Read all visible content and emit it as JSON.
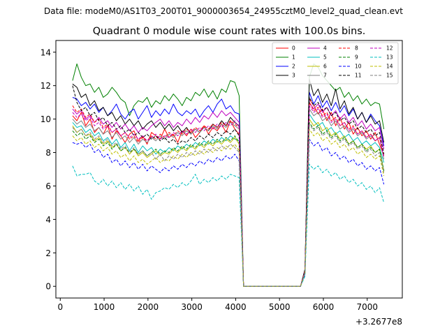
{
  "chart_data": {
    "type": "line",
    "suptitle": "Data file: modeM0/AS1T03_200T01_9000003654_24955cztM0_level2_quad_clean.evt",
    "title": "Quadrant 0 module wise count rates with 100.0s bins.",
    "xlabel": "",
    "ylabel": "",
    "x_offset_text": "+3.2677e8",
    "xlim": [
      -100,
      7800
    ],
    "ylim": [
      -0.7,
      14.7
    ],
    "x_ticks": [
      0,
      1000,
      2000,
      3000,
      4000,
      5000,
      6000,
      7000
    ],
    "x_tick_labels": [
      "0",
      "1000",
      "2000",
      "3000",
      "4000",
      "5000",
      "6000",
      "7000"
    ],
    "y_ticks": [
      0,
      2,
      4,
      6,
      8,
      10,
      12,
      14
    ],
    "y_tick_labels": [
      "0",
      "2",
      "4",
      "6",
      "8",
      "10",
      "12",
      "14"
    ],
    "legend_position": "upper right",
    "x_start": 280,
    "x_step": 100,
    "gap_zero_points": 14,
    "series": [
      {
        "name": "0",
        "color": "#ff0000",
        "dash": "solid",
        "pre": [
          10.2,
          9.9,
          10.4,
          9.6,
          10.0,
          9.2,
          9.5,
          9.1,
          9.6,
          8.8,
          9.3,
          9.0,
          8.6,
          9.1,
          9.3,
          8.7,
          9.0,
          8.5,
          9.2,
          9.0,
          8.8,
          9.4,
          8.9,
          9.1,
          8.6,
          9.3,
          9.0,
          9.4,
          8.9,
          9.2,
          9.6,
          9.1,
          9.5,
          9.3,
          9.7,
          9.2,
          9.9,
          9.4,
          9.1
        ],
        "post": [
          1.0,
          11.2,
          10.8,
          10.3,
          10.6,
          9.9,
          10.4,
          9.6,
          10.1,
          9.4,
          9.8,
          9.1,
          9.5,
          9.0,
          9.3,
          8.8,
          9.2,
          8.5,
          7.8
        ]
      },
      {
        "name": "1",
        "color": "#008000",
        "dash": "solid",
        "pre": [
          12.3,
          13.3,
          12.5,
          12.0,
          12.1,
          11.6,
          11.9,
          11.3,
          11.5,
          11.9,
          11.6,
          11.2,
          11.0,
          10.2,
          10.8,
          11.1,
          11.0,
          11.3,
          10.7,
          11.1,
          10.9,
          11.4,
          11.1,
          11.5,
          11.2,
          10.8,
          11.3,
          11.1,
          11.6,
          11.4,
          11.8,
          11.3,
          11.7,
          11.2,
          11.8,
          11.6,
          12.3,
          12.2,
          11.4
        ],
        "post": [
          1.0,
          12.5,
          13.3,
          13.1,
          12.6,
          12.3,
          12.0,
          11.7,
          11.9,
          11.3,
          11.6,
          11.1,
          11.4,
          10.9,
          11.2,
          10.8,
          11.0,
          10.9,
          9.4
        ]
      },
      {
        "name": "2",
        "color": "#0000ff",
        "dash": "solid",
        "pre": [
          11.3,
          11.2,
          10.8,
          11.0,
          10.6,
          10.9,
          10.4,
          10.7,
          10.2,
          10.5,
          10.9,
          10.3,
          10.0,
          10.4,
          10.6,
          10.0,
          10.4,
          10.8,
          10.1,
          10.5,
          10.2,
          10.6,
          10.3,
          10.9,
          10.4,
          10.2,
          10.5,
          10.3,
          10.6,
          10.1,
          10.5,
          10.8,
          10.4,
          10.9,
          11.2,
          10.6,
          10.8,
          10.4,
          10.3
        ],
        "post": [
          0.9,
          11.6,
          10.9,
          11.4,
          10.7,
          11.1,
          10.5,
          11.0,
          10.4,
          10.8,
          10.2,
          10.6,
          10.0,
          10.4,
          9.8,
          10.3,
          9.9,
          9.6,
          8.4
        ]
      },
      {
        "name": "3",
        "color": "#000000",
        "dash": "solid",
        "pre": [
          12.1,
          11.9,
          11.3,
          11.5,
          10.8,
          11.1,
          10.5,
          10.7,
          10.2,
          10.4,
          9.9,
          10.2,
          9.7,
          10.0,
          9.6,
          9.9,
          9.4,
          9.7,
          9.9,
          9.5,
          9.8,
          9.4,
          9.7,
          9.3,
          9.6,
          9.2,
          9.5,
          9.1,
          9.4,
          9.2,
          9.5,
          9.3,
          9.7,
          9.5,
          9.9,
          9.6,
          10.1,
          9.8,
          9.6
        ],
        "post": [
          1.0,
          12.4,
          11.4,
          11.8,
          11.0,
          11.5,
          10.8,
          11.8,
          10.6,
          11.1,
          10.3,
          10.7,
          10.0,
          10.4,
          9.8,
          10.2,
          9.7,
          9.9,
          8.6
        ]
      },
      {
        "name": "4",
        "color": "#bf00bf",
        "dash": "solid",
        "pre": [
          10.6,
          10.3,
          10.5,
          10.0,
          10.2,
          9.8,
          10.1,
          9.7,
          9.9,
          9.5,
          9.8,
          9.4,
          9.7,
          9.3,
          9.6,
          9.2,
          9.5,
          9.3,
          9.6,
          9.8,
          10.0,
          9.6,
          9.9,
          9.5,
          9.8,
          9.6,
          10.0,
          9.7,
          10.1,
          9.8,
          10.2,
          10.0,
          10.4,
          10.1,
          10.5,
          10.2,
          10.4,
          10.1,
          9.8
        ],
        "post": [
          0.9,
          11.0,
          10.6,
          10.9,
          10.4,
          10.7,
          10.2,
          10.5,
          10.0,
          10.3,
          9.8,
          10.1,
          9.6,
          9.9,
          9.4,
          9.7,
          9.3,
          9.5,
          8.2
        ]
      },
      {
        "name": "5",
        "color": "#00bfbf",
        "dash": "solid",
        "pre": [
          9.8,
          9.5,
          9.6,
          9.2,
          9.4,
          9.0,
          9.2,
          8.7,
          8.9,
          8.5,
          8.8,
          8.3,
          8.6,
          8.1,
          8.5,
          8.0,
          8.4,
          8.1,
          8.3,
          7.9,
          8.2,
          8.0,
          8.3,
          8.1,
          8.4,
          8.2,
          8.5,
          8.3,
          8.6,
          8.4,
          8.7,
          8.5,
          8.8,
          8.6,
          8.9,
          8.7,
          9.0,
          8.8,
          8.7
        ],
        "post": [
          0.8,
          10.3,
          9.9,
          9.6,
          9.8,
          9.3,
          9.5,
          9.1,
          9.3,
          8.9,
          9.1,
          8.7,
          8.9,
          8.5,
          8.7,
          8.4,
          8.6,
          8.3,
          7.4
        ]
      },
      {
        "name": "6",
        "color": "#bfbf00",
        "dash": "solid",
        "pre": [
          9.6,
          9.2,
          9.4,
          9.0,
          9.1,
          8.7,
          8.9,
          8.5,
          8.7,
          8.3,
          8.5,
          8.1,
          8.3,
          7.9,
          8.2,
          7.8,
          8.0,
          7.7,
          7.9,
          8.1,
          7.8,
          8.0,
          7.9,
          8.2,
          8.0,
          8.3,
          8.1,
          8.4,
          8.2,
          8.5,
          8.3,
          8.6,
          8.4,
          8.7,
          8.5,
          8.8,
          8.6,
          8.9,
          8.5
        ],
        "post": [
          0.8,
          10.0,
          9.6,
          9.8,
          9.3,
          9.5,
          9.0,
          9.2,
          8.8,
          9.0,
          8.5,
          8.7,
          8.3,
          8.5,
          8.2,
          8.4,
          8.0,
          8.2,
          6.9
        ]
      },
      {
        "name": "7",
        "color": "#808080",
        "dash": "solid",
        "pre": [
          10.0,
          9.7,
          9.9,
          9.5,
          9.7,
          9.3,
          9.5,
          9.1,
          9.3,
          8.9,
          9.2,
          8.8,
          9.0,
          8.6,
          8.9,
          8.5,
          8.8,
          8.6,
          8.9,
          8.7,
          9.0,
          8.8,
          9.1,
          8.9,
          9.2,
          9.0,
          9.3,
          9.1,
          9.4,
          9.2,
          9.5,
          9.3,
          9.6,
          9.4,
          9.7,
          9.5,
          9.8,
          9.6,
          9.4
        ],
        "post": [
          0.9,
          10.6,
          10.2,
          10.4,
          9.9,
          10.1,
          9.6,
          9.9,
          9.4,
          9.6,
          9.2,
          9.4,
          9.0,
          9.2,
          8.8,
          9.0,
          8.7,
          8.9,
          7.6
        ]
      },
      {
        "name": "8",
        "color": "#ff0000",
        "dash": "dashed",
        "pre": [
          10.8,
          10.4,
          10.6,
          10.1,
          10.3,
          9.8,
          10.0,
          9.5,
          9.7,
          9.2,
          9.4,
          9.0,
          9.2,
          8.8,
          9.0,
          8.6,
          8.9,
          8.7,
          9.0,
          8.8,
          9.1,
          8.9,
          9.2,
          9.0,
          9.3,
          9.1,
          9.4,
          9.2,
          9.5,
          9.3,
          9.6,
          9.4,
          9.7,
          9.5,
          9.8,
          9.6,
          9.9,
          9.7,
          9.5
        ],
        "post": [
          0.9,
          11.0,
          10.5,
          10.7,
          10.2,
          10.4,
          9.9,
          10.1,
          9.6,
          9.8,
          9.4,
          9.6,
          9.1,
          9.3,
          8.9,
          9.1,
          8.7,
          8.9,
          7.8
        ]
      },
      {
        "name": "9",
        "color": "#008000",
        "dash": "dashed",
        "pre": [
          9.3,
          9.0,
          9.2,
          8.8,
          9.0,
          8.6,
          8.8,
          8.4,
          8.6,
          8.2,
          8.5,
          8.1,
          8.3,
          8.0,
          8.2,
          7.9,
          8.1,
          7.8,
          8.0,
          8.2,
          7.9,
          8.1,
          8.0,
          8.3,
          8.1,
          8.4,
          8.2,
          8.5,
          8.3,
          8.6,
          8.4,
          8.7,
          8.5,
          8.8,
          8.6,
          8.9,
          8.7,
          9.0,
          8.6
        ],
        "post": [
          0.8,
          9.8,
          9.4,
          9.6,
          9.1,
          9.3,
          8.9,
          9.1,
          8.7,
          8.9,
          8.5,
          8.7,
          8.3,
          8.5,
          8.1,
          8.3,
          8.0,
          8.2,
          6.9
        ]
      },
      {
        "name": "10",
        "color": "#0000ff",
        "dash": "dashed",
        "pre": [
          8.6,
          8.5,
          8.6,
          8.3,
          8.5,
          8.0,
          8.2,
          7.7,
          7.9,
          7.4,
          7.6,
          7.2,
          7.5,
          7.1,
          7.4,
          7.0,
          7.3,
          6.9,
          7.2,
          7.0,
          6.8,
          7.1,
          6.9,
          7.2,
          7.0,
          7.3,
          7.1,
          7.4,
          7.2,
          7.5,
          7.3,
          7.6,
          7.4,
          7.7,
          7.5,
          7.8,
          7.6,
          7.9,
          7.5
        ],
        "post": [
          0.7,
          8.8,
          8.4,
          8.6,
          8.1,
          8.3,
          7.8,
          8.0,
          7.6,
          7.8,
          7.4,
          7.6,
          7.2,
          7.4,
          7.0,
          7.2,
          6.9,
          7.1,
          6.1
        ]
      },
      {
        "name": "11",
        "color": "#000000",
        "dash": "dashed",
        "pre": [
          12.0,
          11.0,
          10.5,
          10.7,
          10.2,
          10.4,
          9.9,
          10.1,
          9.6,
          9.8,
          9.4,
          9.6,
          9.2,
          9.4,
          9.0,
          9.2,
          8.9,
          9.1,
          8.8,
          9.0,
          8.7,
          8.9,
          8.6,
          8.8,
          8.5,
          8.7,
          8.6,
          8.9,
          8.7,
          9.0,
          8.8,
          9.1,
          8.9,
          9.2,
          9.0,
          9.3,
          9.1,
          9.4,
          9.0
        ],
        "post": [
          0.9,
          11.3,
          10.8,
          11.0,
          10.5,
          10.7,
          10.2,
          10.4,
          9.9,
          10.1,
          9.7,
          9.9,
          9.4,
          9.6,
          9.2,
          9.4,
          9.0,
          9.2,
          7.9
        ]
      },
      {
        "name": "12",
        "color": "#bf00bf",
        "dash": "dashed",
        "pre": [
          10.4,
          10.1,
          10.3,
          9.9,
          10.1,
          9.6,
          9.8,
          9.4,
          9.6,
          9.2,
          9.4,
          9.0,
          9.2,
          8.9,
          9.1,
          8.8,
          9.0,
          8.7,
          8.9,
          9.1,
          8.8,
          9.0,
          8.9,
          9.2,
          9.0,
          9.3,
          9.1,
          9.4,
          9.2,
          9.5,
          9.3,
          9.6,
          9.4,
          9.7,
          9.5,
          9.8,
          9.6,
          9.9,
          9.5
        ],
        "post": [
          0.9,
          10.8,
          10.4,
          10.6,
          10.1,
          10.3,
          9.8,
          10.0,
          9.6,
          9.8,
          9.3,
          9.5,
          9.1,
          9.3,
          8.9,
          9.1,
          8.7,
          8.9,
          7.7
        ]
      },
      {
        "name": "13",
        "color": "#00bfbf",
        "dash": "dashed",
        "pre": [
          7.2,
          6.6,
          6.7,
          6.7,
          6.8,
          6.3,
          6.1,
          6.4,
          6.0,
          6.3,
          5.9,
          6.2,
          5.8,
          6.1,
          5.7,
          6.0,
          5.5,
          5.8,
          5.2,
          5.6,
          5.7,
          5.9,
          5.8,
          6.1,
          5.9,
          6.2,
          6.0,
          6.3,
          6.7,
          6.1,
          6.4,
          6.2,
          6.5,
          6.3,
          6.6,
          6.4,
          6.7,
          6.6,
          6.5
        ],
        "post": [
          0.6,
          7.3,
          7.0,
          7.2,
          6.8,
          7.0,
          6.6,
          6.8,
          6.4,
          6.6,
          6.2,
          6.4,
          6.0,
          6.2,
          5.8,
          6.0,
          5.6,
          5.9,
          5.0
        ]
      },
      {
        "name": "14",
        "color": "#bfbf00",
        "dash": "dashed",
        "pre": [
          9.0,
          8.7,
          8.9,
          8.5,
          8.7,
          8.3,
          8.5,
          8.1,
          8.3,
          7.9,
          8.1,
          7.7,
          7.9,
          7.5,
          7.8,
          7.4,
          7.6,
          7.3,
          7.5,
          7.7,
          7.4,
          7.6,
          7.5,
          7.8,
          7.6,
          7.9,
          7.7,
          8.0,
          7.8,
          8.1,
          7.9,
          8.2,
          8.0,
          8.3,
          8.1,
          8.4,
          8.2,
          8.5,
          8.1
        ],
        "post": [
          0.8,
          9.4,
          9.0,
          9.2,
          8.7,
          8.9,
          8.5,
          8.7,
          8.3,
          8.5,
          8.1,
          8.3,
          7.9,
          8.1,
          7.7,
          7.9,
          7.6,
          7.8,
          6.6
        ]
      },
      {
        "name": "15",
        "color": "#808080",
        "dash": "dashed",
        "pre": [
          9.5,
          9.2,
          9.4,
          9.0,
          9.2,
          8.8,
          9.0,
          8.6,
          8.8,
          8.4,
          8.6,
          8.2,
          8.4,
          8.0,
          8.3,
          7.9,
          8.1,
          7.8,
          8.0,
          7.6,
          7.9,
          7.5,
          7.8,
          7.6,
          7.9,
          7.7,
          8.0,
          7.8,
          8.1,
          7.9,
          8.2,
          8.0,
          8.3,
          8.1,
          8.4,
          8.2,
          8.5,
          8.3,
          8.0
        ],
        "post": [
          0.8,
          9.7,
          9.3,
          9.5,
          9.0,
          9.2,
          8.8,
          9.0,
          8.6,
          8.8,
          8.4,
          8.6,
          8.2,
          8.4,
          8.0,
          8.2,
          7.8,
          8.0,
          6.8
        ]
      }
    ]
  }
}
